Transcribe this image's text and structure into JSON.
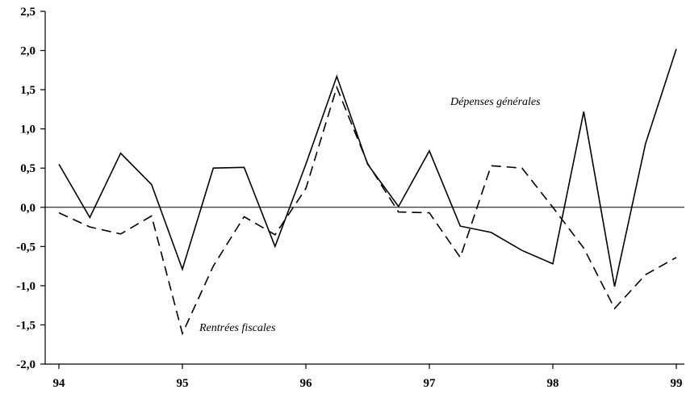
{
  "chart_data": {
    "type": "line",
    "ylim": [
      -2.0,
      2.5
    ],
    "y_ticks": [
      "2,5",
      "2,0",
      "1,5",
      "1,0",
      "0,5",
      "0,0",
      "-0,5",
      "-1,0",
      "-1,5",
      "-2,0"
    ],
    "y_tick_values": [
      2.5,
      2.0,
      1.5,
      1.0,
      0.5,
      0.0,
      -0.5,
      -1.0,
      -1.5,
      -2.0
    ],
    "x_ticks": [
      "94",
      "95",
      "96",
      "97",
      "98",
      "99"
    ],
    "x_tick_values": [
      94,
      95,
      96,
      97,
      98,
      99
    ],
    "grid": false,
    "zero_line": true,
    "series": [
      {
        "name": "Dépenses générales",
        "style": "solid",
        "x": [
          94.0,
          94.25,
          94.5,
          94.75,
          95.0,
          95.25,
          95.5,
          95.75,
          96.0,
          96.25,
          96.5,
          96.75,
          97.0,
          97.25,
          97.5,
          97.75,
          98.0,
          98.25,
          98.5,
          98.75,
          99.0
        ],
        "values": [
          0.55,
          -0.13,
          0.69,
          0.29,
          -0.79,
          0.5,
          0.51,
          -0.5,
          0.55,
          1.67,
          0.55,
          0.01,
          0.72,
          -0.24,
          -0.32,
          -0.55,
          -0.72,
          1.22,
          -1.01,
          0.81,
          2.02
        ]
      },
      {
        "name": "Rentrées fiscales",
        "style": "dashed",
        "x": [
          94.0,
          94.25,
          94.5,
          94.75,
          95.0,
          95.25,
          95.5,
          95.75,
          96.0,
          96.25,
          96.5,
          96.75,
          97.0,
          97.25,
          97.5,
          97.75,
          98.0,
          98.25,
          98.5,
          98.75,
          99.0
        ],
        "values": [
          -0.07,
          -0.25,
          -0.34,
          -0.11,
          -1.61,
          -0.75,
          -0.12,
          -0.35,
          0.24,
          1.53,
          0.56,
          -0.06,
          -0.07,
          -0.64,
          0.53,
          0.5,
          0.0,
          -0.52,
          -1.29,
          -0.86,
          -0.64
        ]
      }
    ]
  },
  "labels": {
    "depenses": "Dépenses générales",
    "rentrees": "Rentrées fiscales"
  }
}
